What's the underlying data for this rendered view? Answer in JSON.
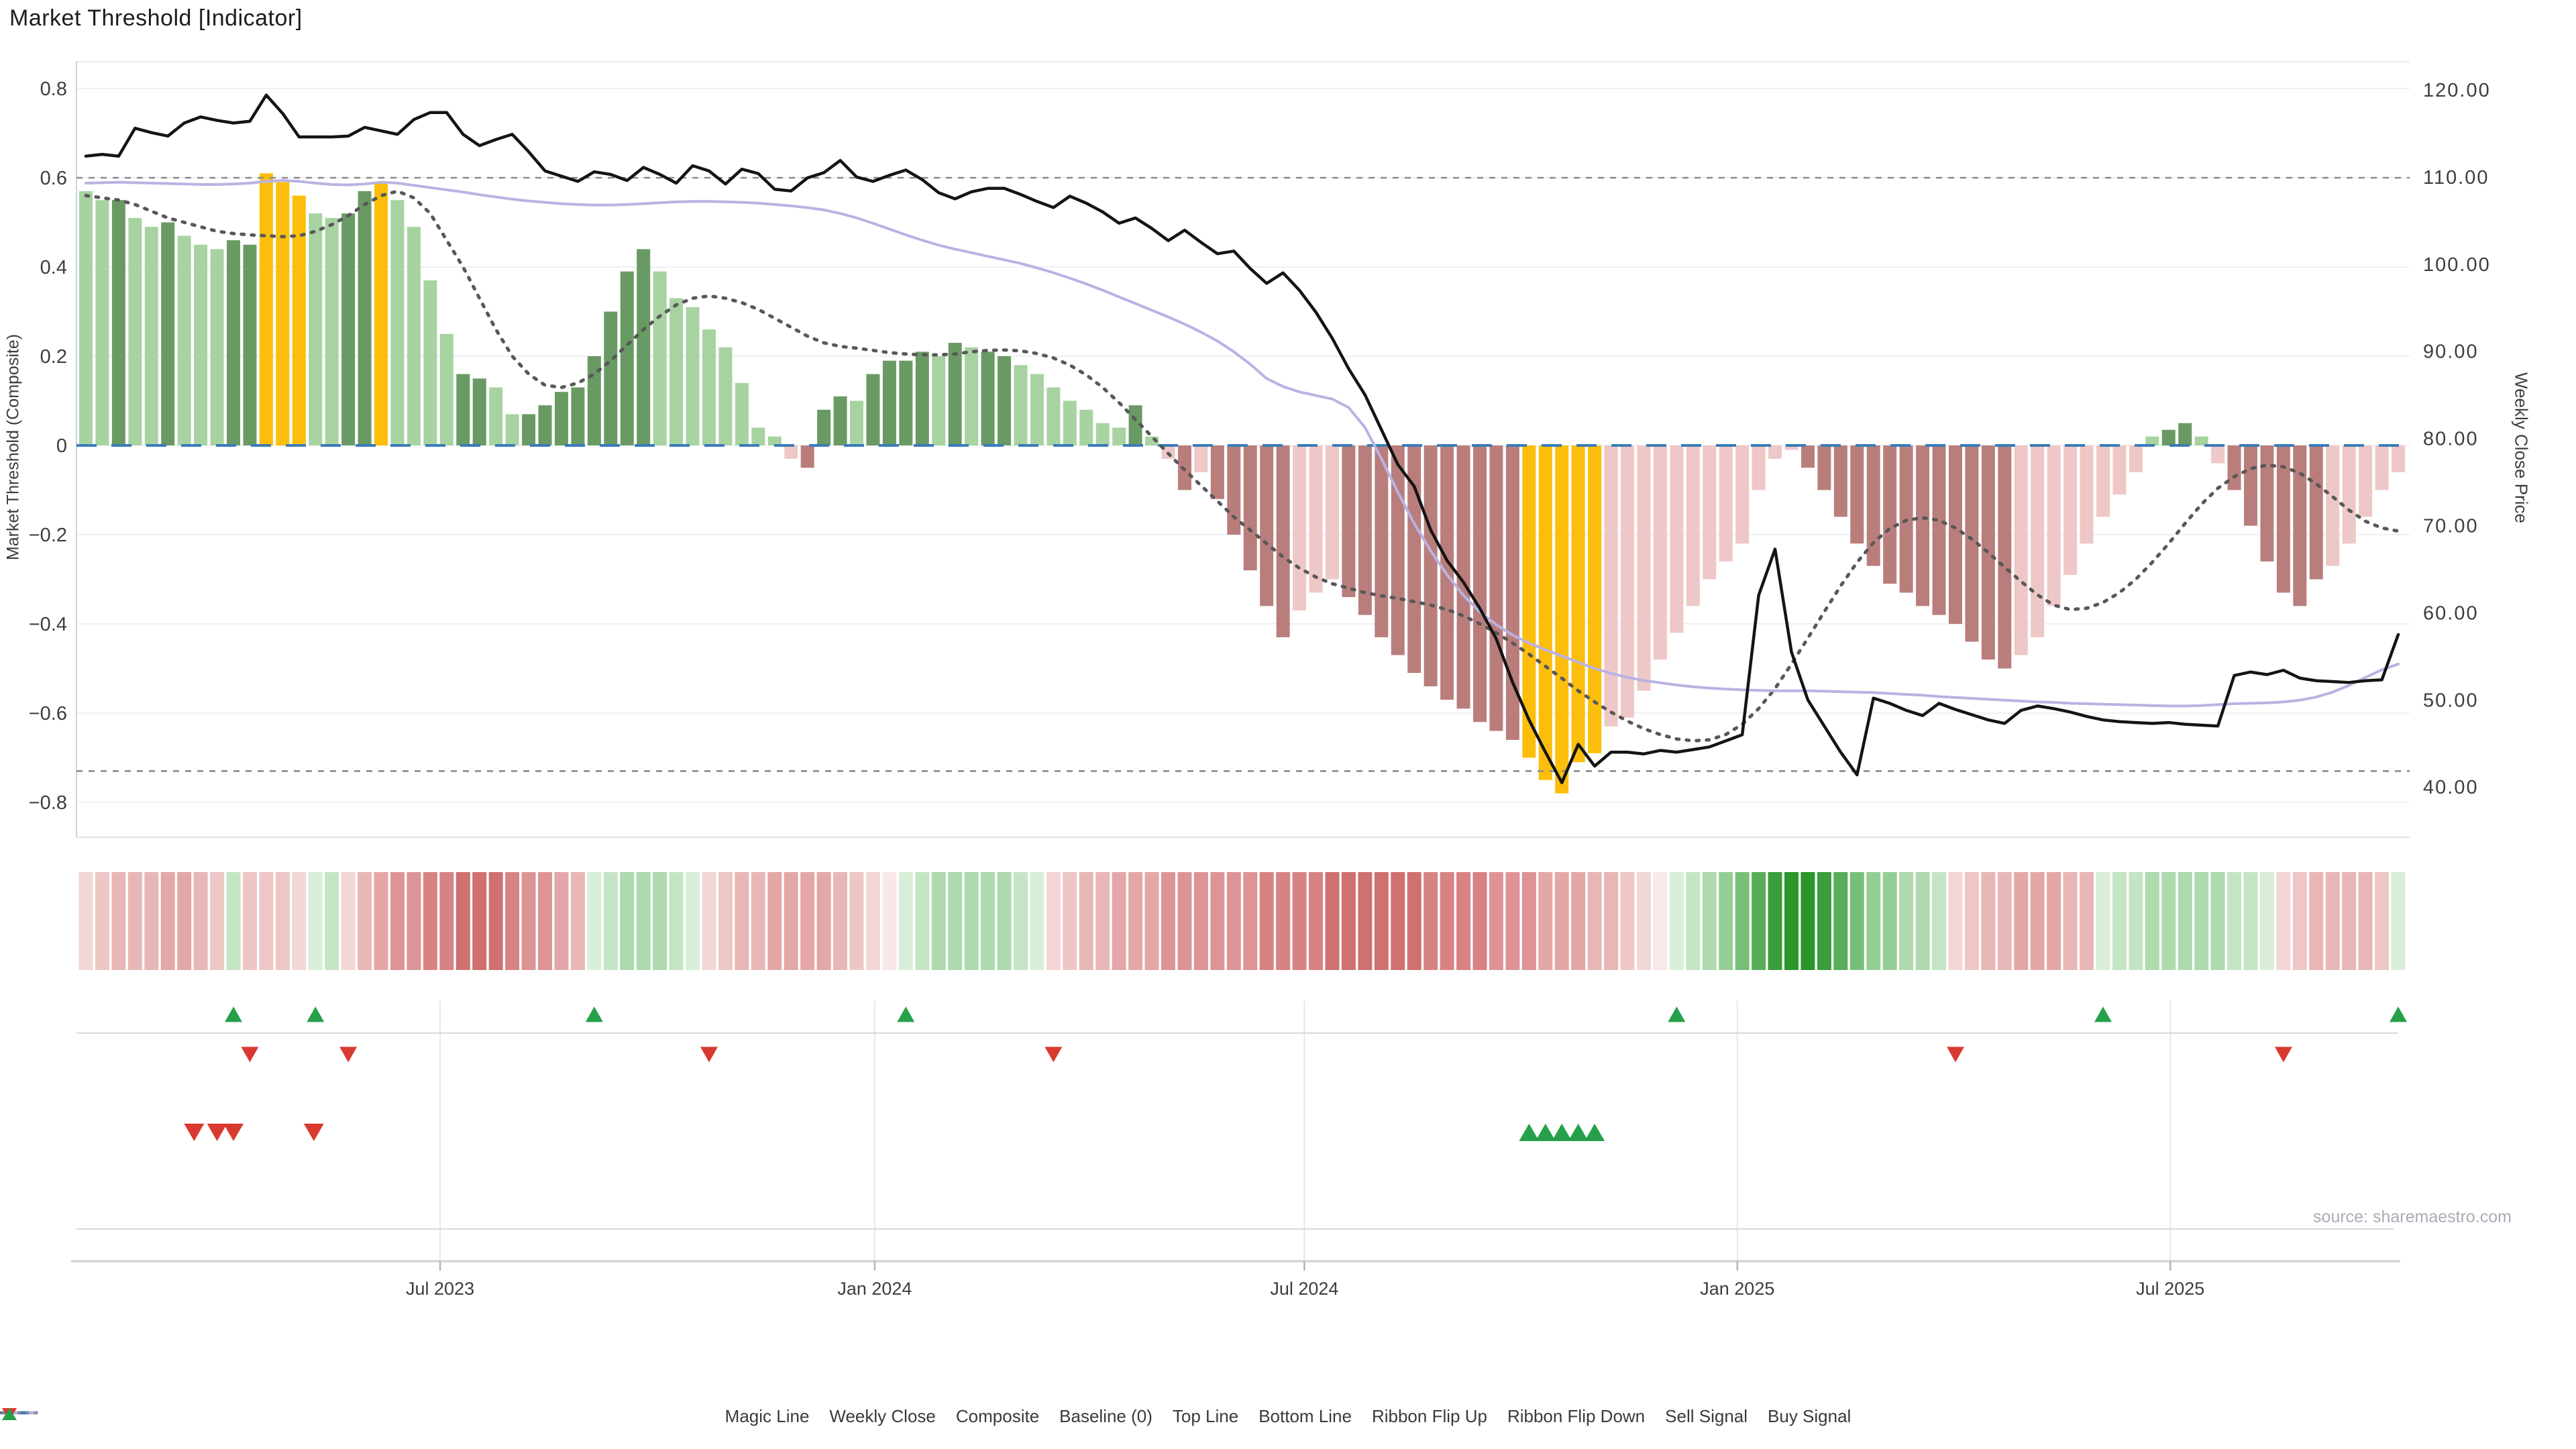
{
  "title": "Market Threshold [Indicator]",
  "source": "source: sharemaestro.com",
  "axes": {
    "left_title": "Market Threshold (Composite)",
    "right_title": "Weekly Close Price",
    "left_ticks": [
      {
        "label": "0.8",
        "v": 0.8
      },
      {
        "label": "0.6",
        "v": 0.6
      },
      {
        "label": "0.4",
        "v": 0.4
      },
      {
        "label": "0.2",
        "v": 0.2
      },
      {
        "label": "0",
        "v": 0
      },
      {
        "label": "−0.2",
        "v": -0.2
      },
      {
        "label": "−0.4",
        "v": -0.4
      },
      {
        "label": "−0.6",
        "v": -0.6
      },
      {
        "label": "−0.8",
        "v": -0.8
      }
    ],
    "right_ticks": [
      {
        "label": "120.00",
        "v": 120
      },
      {
        "label": "110.00",
        "v": 110
      },
      {
        "label": "100.00",
        "v": 100
      },
      {
        "label": "90.00",
        "v": 90
      },
      {
        "label": "80.00",
        "v": 80
      },
      {
        "label": "70.00",
        "v": 70
      },
      {
        "label": "60.00",
        "v": 60
      },
      {
        "label": "50.00",
        "v": 50
      },
      {
        "label": "40.00",
        "v": 40
      }
    ],
    "x_ticks": [
      {
        "label": "Jul 2023",
        "i": 21.6
      },
      {
        "label": "Jan 2024",
        "i": 48.1
      },
      {
        "label": "Jul 2024",
        "i": 74.3
      },
      {
        "label": "Jan 2025",
        "i": 100.7
      },
      {
        "label": "Jul 2025",
        "i": 127.1
      }
    ]
  },
  "legend": [
    {
      "label": "Magic Line",
      "marker": "dotted",
      "color": "#555555"
    },
    {
      "label": "Weekly Close",
      "marker": "solid",
      "color": "#141414"
    },
    {
      "label": "Composite",
      "marker": "solid",
      "color": "#b9b2e4"
    },
    {
      "label": "Baseline (0)",
      "marker": "dashed",
      "color": "#3a7cb8"
    },
    {
      "label": "Top Line",
      "marker": "dotted-small",
      "color": "#8a8a8a"
    },
    {
      "label": "Bottom Line",
      "marker": "dotted-small",
      "color": "#8a8a8a"
    },
    {
      "label": "Ribbon Flip Up",
      "marker": "tri-up",
      "color": "#26a04b"
    },
    {
      "label": "Ribbon Flip Down",
      "marker": "tri-down",
      "color": "#d93a30"
    },
    {
      "label": "Sell Signal",
      "marker": "tri-down",
      "color": "#d93a30"
    },
    {
      "label": "Buy Signal",
      "marker": "tri-up",
      "color": "#26a04b"
    }
  ],
  "chart_data": {
    "type": "combo-bar-line",
    "ylim_left": [
      -0.8,
      0.8
    ],
    "ylim_right": [
      40,
      120
    ],
    "top_line": 0.6,
    "bottom_line": -0.73,
    "baseline": 0,
    "n_weeks": 142,
    "bar_colors_map": {
      "lg": "#a7d3a1",
      "dg": "#6a9a63",
      "au": "#fcbe0a",
      "lp": "#eec8c6",
      "dr": "#b97e7c"
    },
    "threshold": [
      0.57,
      0.55,
      0.55,
      0.51,
      0.49,
      0.5,
      0.47,
      0.45,
      0.44,
      0.46,
      0.45,
      0.61,
      0.59,
      0.56,
      0.52,
      0.51,
      0.52,
      0.57,
      0.59,
      0.55,
      0.49,
      0.37,
      0.25,
      0.16,
      0.15,
      0.13,
      0.07,
      0.07,
      0.09,
      0.12,
      0.13,
      0.2,
      0.3,
      0.39,
      0.44,
      0.39,
      0.33,
      0.31,
      0.26,
      0.22,
      0.14,
      0.04,
      0.02,
      -0.03,
      -0.05,
      0.08,
      0.11,
      0.1,
      0.16,
      0.19,
      0.19,
      0.21,
      0.2,
      0.23,
      0.22,
      0.21,
      0.2,
      0.18,
      0.16,
      0.13,
      0.1,
      0.08,
      0.05,
      0.04,
      0.09,
      0.02,
      -0.03,
      -0.1,
      -0.06,
      -0.12,
      -0.2,
      -0.28,
      -0.36,
      -0.43,
      -0.37,
      -0.33,
      -0.3,
      -0.34,
      -0.38,
      -0.43,
      -0.47,
      -0.51,
      -0.54,
      -0.57,
      -0.59,
      -0.62,
      -0.64,
      -0.66,
      -0.7,
      -0.75,
      -0.78,
      -0.71,
      -0.69,
      -0.63,
      -0.61,
      -0.55,
      -0.48,
      -0.42,
      -0.36,
      -0.3,
      -0.26,
      -0.22,
      -0.1,
      -0.03,
      -0.01,
      -0.05,
      -0.1,
      -0.16,
      -0.22,
      -0.27,
      -0.31,
      -0.33,
      -0.36,
      -0.38,
      -0.4,
      -0.44,
      -0.48,
      -0.5,
      -0.47,
      -0.43,
      -0.36,
      -0.29,
      -0.22,
      -0.16,
      -0.11,
      -0.06,
      0.02,
      0.035,
      0.05,
      0.02,
      -0.04,
      -0.1,
      -0.18,
      -0.26,
      -0.33,
      -0.36,
      -0.3,
      -0.27,
      -0.22,
      -0.16,
      -0.1,
      -0.06
    ],
    "bar_color_codes": [
      "lg",
      "lg",
      "dg",
      "lg",
      "lg",
      "dg",
      "lg",
      "lg",
      "lg",
      "dg",
      "dg",
      "au",
      "au",
      "au",
      "lg",
      "lg",
      "dg",
      "dg",
      "au",
      "lg",
      "lg",
      "lg",
      "lg",
      "dg",
      "dg",
      "lg",
      "lg",
      "dg",
      "dg",
      "dg",
      "dg",
      "dg",
      "dg",
      "dg",
      "dg",
      "lg",
      "lg",
      "lg",
      "lg",
      "lg",
      "lg",
      "lg",
      "lg",
      "lp",
      "dr",
      "dg",
      "dg",
      "lg",
      "dg",
      "dg",
      "dg",
      "dg",
      "lg",
      "dg",
      "lg",
      "dg",
      "dg",
      "lg",
      "lg",
      "lg",
      "lg",
      "lg",
      "lg",
      "lg",
      "dg",
      "lg",
      "lp",
      "dr",
      "lp",
      "dr",
      "dr",
      "dr",
      "dr",
      "dr",
      "lp",
      "lp",
      "lp",
      "dr",
      "dr",
      "dr",
      "dr",
      "dr",
      "dr",
      "dr",
      "dr",
      "dr",
      "dr",
      "dr",
      "au",
      "au",
      "au",
      "au",
      "au",
      "lp",
      "lp",
      "lp",
      "lp",
      "lp",
      "lp",
      "lp",
      "lp",
      "lp",
      "lp",
      "lp",
      "lp",
      "dr",
      "dr",
      "dr",
      "dr",
      "dr",
      "dr",
      "dr",
      "dr",
      "dr",
      "dr",
      "dr",
      "dr",
      "dr",
      "lp",
      "lp",
      "lp",
      "lp",
      "lp",
      "lp",
      "lp",
      "lp",
      "lg",
      "dg",
      "dg",
      "lg",
      "lp",
      "dr",
      "dr",
      "dr",
      "dr",
      "dr",
      "dr",
      "lp",
      "lp",
      "lp",
      "lp",
      "lp"
    ],
    "weekly_close": [
      112.4,
      112.6,
      112.4,
      115.6,
      115.1,
      114.7,
      116.2,
      116.9,
      116.5,
      116.2,
      116.4,
      119.4,
      117.3,
      114.6,
      114.6,
      114.6,
      114.7,
      115.7,
      115.3,
      114.9,
      116.6,
      117.4,
      117.4,
      114.9,
      113.6,
      114.3,
      114.9,
      112.9,
      110.7,
      110.1,
      109.5,
      110.6,
      110.3,
      109.6,
      111.1,
      110.3,
      109.3,
      111.3,
      110.7,
      109.2,
      110.9,
      110.4,
      108.6,
      108.4,
      109.9,
      110.5,
      111.9,
      110.0,
      109.5,
      110.2,
      110.8,
      109.7,
      108.2,
      107.5,
      108.3,
      108.7,
      108.7,
      108.0,
      107.2,
      106.5,
      107.8,
      107.0,
      106.0,
      104.7,
      105.3,
      104.1,
      102.7,
      103.9,
      102.5,
      101.2,
      101.5,
      99.5,
      97.8,
      99.0,
      97.0,
      94.5,
      91.5,
      88.0,
      85.0,
      81.0,
      77.0,
      74.5,
      69.5,
      66.0,
      63.5,
      60.5,
      57.0,
      52.0,
      47.7,
      44.0,
      40.5,
      44.9,
      42.4,
      44.0,
      44.0,
      43.8,
      44.2,
      44.0,
      44.3,
      44.6,
      45.3,
      46.0,
      62.0,
      67.3,
      55.5,
      50.0,
      47.0,
      44.0,
      41.4,
      50.2,
      49.6,
      48.8,
      48.2,
      49.6,
      48.9,
      48.3,
      47.7,
      47.3,
      48.8,
      49.3,
      49.0,
      48.6,
      48.1,
      47.7,
      47.5,
      47.4,
      47.3,
      47.4,
      47.2,
      47.1,
      47.0,
      52.8,
      53.2,
      52.9,
      53.4,
      52.5,
      52.2,
      52.1,
      52.0,
      52.2,
      52.3,
      57.5
    ],
    "composite": [
      0.588,
      0.589,
      0.59,
      0.589,
      0.588,
      0.587,
      0.586,
      0.585,
      0.585,
      0.586,
      0.588,
      0.592,
      0.594,
      0.592,
      0.588,
      0.585,
      0.584,
      0.586,
      0.59,
      0.588,
      0.583,
      0.578,
      0.573,
      0.568,
      0.562,
      0.557,
      0.552,
      0.548,
      0.545,
      0.542,
      0.54,
      0.539,
      0.539,
      0.54,
      0.542,
      0.544,
      0.546,
      0.547,
      0.547,
      0.546,
      0.545,
      0.543,
      0.54,
      0.537,
      0.533,
      0.528,
      0.52,
      0.51,
      0.498,
      0.485,
      0.472,
      0.46,
      0.449,
      0.44,
      0.432,
      0.424,
      0.416,
      0.408,
      0.398,
      0.387,
      0.375,
      0.362,
      0.348,
      0.333,
      0.318,
      0.303,
      0.288,
      0.272,
      0.254,
      0.234,
      0.21,
      0.182,
      0.15,
      0.132,
      0.12,
      0.112,
      0.104,
      0.085,
      0.04,
      -0.03,
      -0.105,
      -0.175,
      -0.236,
      -0.29,
      -0.336,
      -0.373,
      -0.402,
      -0.425,
      -0.443,
      -0.458,
      -0.472,
      -0.486,
      -0.5,
      -0.511,
      -0.52,
      -0.527,
      -0.532,
      -0.537,
      -0.541,
      -0.544,
      -0.546,
      -0.548,
      -0.549,
      -0.55,
      -0.55,
      -0.55,
      -0.551,
      -0.552,
      -0.553,
      -0.554,
      -0.556,
      -0.558,
      -0.56,
      -0.563,
      -0.565,
      -0.567,
      -0.569,
      -0.571,
      -0.573,
      -0.575,
      -0.576,
      -0.578,
      -0.579,
      -0.58,
      -0.581,
      -0.582,
      -0.583,
      -0.584,
      -0.584,
      -0.583,
      -0.581,
      -0.579,
      -0.578,
      -0.577,
      -0.575,
      -0.571,
      -0.564,
      -0.553,
      -0.538,
      -0.52,
      -0.503,
      -0.49
    ],
    "magic_line": [
      0.56,
      0.555,
      0.55,
      0.54,
      0.525,
      0.51,
      0.5,
      0.49,
      0.48,
      0.475,
      0.472,
      0.47,
      0.468,
      0.47,
      0.48,
      0.495,
      0.515,
      0.54,
      0.56,
      0.57,
      0.555,
      0.52,
      0.46,
      0.4,
      0.33,
      0.26,
      0.2,
      0.16,
      0.135,
      0.13,
      0.14,
      0.16,
      0.19,
      0.225,
      0.26,
      0.29,
      0.315,
      0.33,
      0.335,
      0.33,
      0.32,
      0.305,
      0.285,
      0.265,
      0.245,
      0.23,
      0.222,
      0.218,
      0.213,
      0.208,
      0.205,
      0.203,
      0.203,
      0.205,
      0.21,
      0.213,
      0.214,
      0.212,
      0.206,
      0.196,
      0.18,
      0.158,
      0.13,
      0.096,
      0.058,
      0.02,
      -0.018,
      -0.055,
      -0.09,
      -0.125,
      -0.16,
      -0.19,
      -0.22,
      -0.25,
      -0.275,
      -0.295,
      -0.31,
      -0.32,
      -0.33,
      -0.337,
      -0.343,
      -0.35,
      -0.358,
      -0.368,
      -0.382,
      -0.4,
      -0.42,
      -0.443,
      -0.468,
      -0.495,
      -0.522,
      -0.55,
      -0.575,
      -0.598,
      -0.618,
      -0.635,
      -0.648,
      -0.658,
      -0.662,
      -0.66,
      -0.648,
      -0.625,
      -0.59,
      -0.545,
      -0.49,
      -0.432,
      -0.373,
      -0.315,
      -0.262,
      -0.218,
      -0.186,
      -0.168,
      -0.162,
      -0.168,
      -0.185,
      -0.21,
      -0.24,
      -0.273,
      -0.305,
      -0.335,
      -0.358,
      -0.368,
      -0.365,
      -0.352,
      -0.33,
      -0.3,
      -0.262,
      -0.22,
      -0.175,
      -0.132,
      -0.096,
      -0.07,
      -0.052,
      -0.044,
      -0.048,
      -0.062,
      -0.086,
      -0.115,
      -0.145,
      -0.17,
      -0.185,
      -0.192
    ],
    "ribbon_colors": [
      "#f3d6d6",
      "#eec6c6",
      "#e9b6b6",
      "#e9b6b6",
      "#e9b6b6",
      "#e4a6a6",
      "#e4a6a6",
      "#e9b6b6",
      "#eec6c6",
      "#c4e5c4",
      "#eec6c6",
      "#eec6c6",
      "#eec6c6",
      "#f3d6d6",
      "#d8eed8",
      "#c4e5c4",
      "#f3d6d6",
      "#e9b6b6",
      "#e4a6a6",
      "#de9494",
      "#de9494",
      "#d88383",
      "#d88383",
      "#d07070",
      "#d07070",
      "#d07070",
      "#d88383",
      "#de9494",
      "#de9494",
      "#e4a6a6",
      "#e9b6b6",
      "#d8eed8",
      "#c4e5c4",
      "#aedaae",
      "#aedaae",
      "#aedaae",
      "#c4e5c4",
      "#d8eed8",
      "#f3d6d6",
      "#eec6c6",
      "#e9b6b6",
      "#e9b6b6",
      "#e4a6a6",
      "#e4a6a6",
      "#e4a6a6",
      "#e4a6a6",
      "#e9b6b6",
      "#eec6c6",
      "#f3d6d6",
      "#f8e8e8",
      "#d8eed8",
      "#c4e5c4",
      "#aedaae",
      "#aedaae",
      "#aedaae",
      "#aedaae",
      "#aedaae",
      "#c4e5c4",
      "#d8eed8",
      "#f3d6d6",
      "#eec6c6",
      "#e9b6b6",
      "#e9b6b6",
      "#e4a6a6",
      "#e4a6a6",
      "#e4a6a6",
      "#de9494",
      "#de9494",
      "#de9494",
      "#de9494",
      "#de9494",
      "#de9494",
      "#d88383",
      "#d88383",
      "#d88383",
      "#d88383",
      "#d07070",
      "#d07070",
      "#d07070",
      "#d07070",
      "#d07070",
      "#d07070",
      "#d88383",
      "#d88383",
      "#d88383",
      "#d88383",
      "#de9494",
      "#de9494",
      "#de9494",
      "#e4a6a6",
      "#e4a6a6",
      "#e4a6a6",
      "#e9b6b6",
      "#e9b6b6",
      "#eec6c6",
      "#f3d6d6",
      "#f8e8e8",
      "#d8eed8",
      "#c4e5c4",
      "#aedaae",
      "#95ce95",
      "#78bf78",
      "#58ae58",
      "#3a9e3a",
      "#2a962a",
      "#2a962a",
      "#3a9e3a",
      "#58ae58",
      "#78bf78",
      "#95ce95",
      "#95ce95",
      "#aedaae",
      "#aedaae",
      "#c4e5c4",
      "#f3d6d6",
      "#eec6c6",
      "#e9b6b6",
      "#e9b6b6",
      "#e4a6a6",
      "#e4a6a6",
      "#e4a6a6",
      "#e9b6b6",
      "#e9b6b6",
      "#d8eed8",
      "#c4e5c4",
      "#c4e5c4",
      "#aedaae",
      "#aedaae",
      "#aedaae",
      "#aedaae",
      "#aedaae",
      "#c4e5c4",
      "#c4e5c4",
      "#d8eed8",
      "#f3d6d6",
      "#eec6c6",
      "#e9b6b6",
      "#e9b6b6",
      "#e9b6b6",
      "#e9b6b6",
      "#eec6c6",
      "#d8eed8"
    ],
    "signals": {
      "ribbon_flip_up": [
        9,
        14,
        31,
        50,
        97,
        123,
        141
      ],
      "ribbon_flip_down": [
        10,
        16,
        38,
        59,
        114,
        134
      ],
      "sell": [
        6.6,
        8.0,
        9.0,
        13.9
      ],
      "buy": [
        88,
        89,
        90,
        91,
        92
      ]
    },
    "colors": {
      "weekly_close": "#141414",
      "composite": "#b9b2e4",
      "magic": "#585858",
      "baseline": "#3a7cb8",
      "ref_dash": "#8a8a8a",
      "grid": "#edf0f5",
      "spine": "#cdd2d9",
      "panel_line": "#d9d9d9",
      "tick_text": "#3d3d3d",
      "flip_up": "#26a04b",
      "flip_down": "#d93a30"
    }
  }
}
